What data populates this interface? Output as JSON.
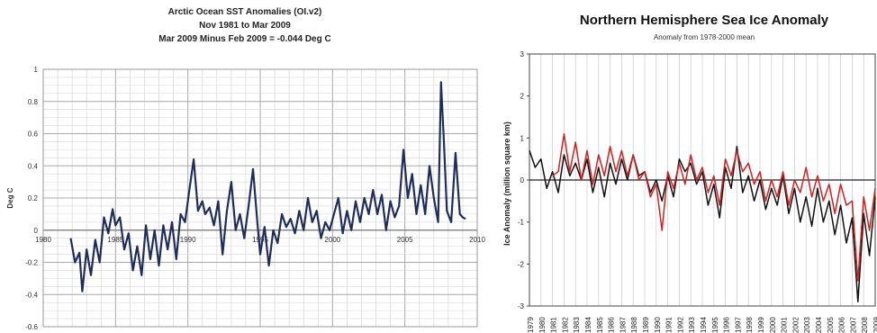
{
  "chart_data": [
    {
      "type": "line",
      "title": "Arctic Ocean SST Anomalies (OI.v2)",
      "subtitle_1": "Nov 1981 to Mar 2009",
      "subtitle_2": "Mar 2009 Minus Feb 2009 = -0.044 Deg C",
      "xlabel": "",
      "ylabel": "Deg C",
      "xlim": [
        1980,
        2010
      ],
      "ylim": [
        -0.6,
        1.0
      ],
      "x_ticks": [
        "1980",
        "1985",
        "1990",
        "1995",
        "2000",
        "2005",
        "2010"
      ],
      "y_ticks": [
        "-0.6",
        "-0.4",
        "-0.2",
        "0",
        "0.2",
        "0.4",
        "0.6",
        "0.8",
        "1"
      ],
      "grid": true,
      "color": "#1f2d5c",
      "series": [
        {
          "x": [
            1981.9,
            1982.2,
            1982.5,
            1982.7,
            1983.0,
            1983.3,
            1983.6,
            1983.9,
            1984.2,
            1984.5,
            1984.8,
            1985.0,
            1985.3,
            1985.6,
            1985.9,
            1986.2,
            1986.5,
            1986.8,
            1987.1,
            1987.4,
            1987.7,
            1988.0,
            1988.3,
            1988.6,
            1988.9,
            1989.2,
            1989.5,
            1989.8,
            1990.1,
            1990.4,
            1990.7,
            1991.0,
            1991.2,
            1991.5,
            1991.8,
            1992.1,
            1992.4,
            1992.7,
            1993.0,
            1993.3,
            1993.6,
            1993.9,
            1994.2,
            1994.5,
            1994.8,
            1995.0,
            1995.3,
            1995.6,
            1995.9,
            1996.2,
            1996.5,
            1996.8,
            1997.1,
            1997.4,
            1997.7,
            1998.0,
            1998.3,
            1998.6,
            1998.9,
            1999.2,
            1999.5,
            1999.8,
            2000.1,
            2000.4,
            2000.7,
            2001.0,
            2001.3,
            2001.6,
            2001.9,
            2002.2,
            2002.5,
            2002.8,
            2003.1,
            2003.4,
            2003.7,
            2004.0,
            2004.3,
            2004.6,
            2004.9,
            2005.2,
            2005.5,
            2005.8,
            2006.1,
            2006.4,
            2006.7,
            2007.0,
            2007.3,
            2007.5,
            2007.7,
            2007.9,
            2008.2,
            2008.5,
            2008.8,
            2009.0,
            2009.2
          ],
          "y": [
            -0.05,
            -0.2,
            -0.14,
            -0.38,
            -0.12,
            -0.28,
            -0.06,
            -0.2,
            0.08,
            -0.02,
            0.13,
            0.03,
            0.08,
            -0.12,
            -0.02,
            -0.25,
            -0.1,
            -0.28,
            0.03,
            -0.18,
            0.0,
            -0.22,
            0.03,
            -0.12,
            0.05,
            -0.18,
            0.1,
            0.05,
            0.25,
            0.44,
            0.12,
            0.18,
            0.1,
            0.14,
            0.03,
            0.18,
            -0.15,
            0.12,
            0.3,
            0.0,
            0.1,
            -0.05,
            0.15,
            0.38,
            0.05,
            -0.15,
            0.02,
            -0.22,
            0.0,
            -0.08,
            0.1,
            0.02,
            0.07,
            -0.02,
            0.12,
            0.0,
            0.2,
            0.05,
            0.12,
            -0.05,
            0.05,
            0.0,
            0.1,
            0.2,
            -0.02,
            0.12,
            0.0,
            0.18,
            0.05,
            0.2,
            0.1,
            0.25,
            0.1,
            0.22,
            0.0,
            0.18,
            0.08,
            0.15,
            0.5,
            0.2,
            0.35,
            0.1,
            0.28,
            0.1,
            0.4,
            0.2,
            0.05,
            0.92,
            0.55,
            0.12,
            0.05,
            0.48,
            0.1,
            0.08,
            0.07
          ]
        }
      ]
    },
    {
      "type": "line",
      "title": "Northern Hemisphere Sea Ice Anomaly",
      "subtitle": "Anomaly from 1978-2000 mean",
      "xlabel": "",
      "ylabel": "Ice Anomaly (million square km)",
      "xlim": [
        1979,
        2009
      ],
      "ylim": [
        -3,
        3
      ],
      "x_ticks": [
        "1979",
        "1980",
        "1981",
        "1982",
        "1983",
        "1984",
        "1985",
        "1986",
        "1987",
        "1988",
        "1989",
        "1990",
        "1991",
        "1992",
        "1993",
        "1994",
        "1995",
        "1996",
        "1997",
        "1998",
        "1999",
        "2000",
        "2001",
        "2002",
        "2003",
        "2004",
        "2005",
        "2006",
        "2007",
        "2008",
        "2009"
      ],
      "y_ticks": [
        "3",
        "2",
        "1",
        "0",
        "-1",
        "-2",
        "-3"
      ],
      "grid": true,
      "series": [
        {
          "color": "#111111",
          "x": [
            1979,
            1979.5,
            1980,
            1980.5,
            1981,
            1981.5,
            1982,
            1982.5,
            1983,
            1983.5,
            1984,
            1984.5,
            1985,
            1985.5,
            1986,
            1986.5,
            1987,
            1987.5,
            1988,
            1988.5,
            1989,
            1989.5,
            1990,
            1990.5,
            1991,
            1991.5,
            1992,
            1992.5,
            1993,
            1993.5,
            1994,
            1994.5,
            1995,
            1995.5,
            1996,
            1996.5,
            1997,
            1997.5,
            1998,
            1998.5,
            1999,
            1999.5,
            2000,
            2000.5,
            2001,
            2001.5,
            2002,
            2002.5,
            2003,
            2003.5,
            2004,
            2004.5,
            2005,
            2005.5,
            2006,
            2006.5,
            2007,
            2007.5,
            2008,
            2008.5,
            2009
          ],
          "y": [
            0.7,
            0.3,
            0.5,
            -0.2,
            0.2,
            -0.3,
            0.6,
            0.1,
            0.4,
            0.0,
            0.5,
            -0.3,
            0.3,
            -0.4,
            0.4,
            -0.1,
            0.5,
            0.0,
            0.6,
            0.1,
            0.2,
            -0.3,
            0.0,
            -0.5,
            0.1,
            -0.4,
            0.5,
            0.2,
            0.4,
            -0.1,
            0.2,
            -0.6,
            -0.1,
            -0.9,
            0.3,
            -0.2,
            0.8,
            -0.3,
            0.1,
            -0.5,
            0.0,
            -0.7,
            -0.2,
            -0.6,
            0.1,
            -0.8,
            -0.2,
            -1.0,
            -0.4,
            -1.1,
            -0.2,
            -1.0,
            -0.5,
            -1.3,
            -0.6,
            -1.5,
            -0.9,
            -2.9,
            -0.8,
            -1.8,
            -0.4
          ]
        },
        {
          "color": "#d32020",
          "x": [
            1981,
            1981.5,
            1982,
            1982.5,
            1983,
            1983.5,
            1984,
            1984.5,
            1985,
            1985.5,
            1986,
            1986.5,
            1987,
            1987.5,
            1988,
            1988.5,
            1989,
            1989.5,
            1990,
            1990.5,
            1991,
            1991.5,
            1992,
            1992.5,
            1993,
            1993.5,
            1994,
            1994.5,
            1995,
            1995.5,
            1996,
            1996.5,
            1997,
            1997.5,
            1998,
            1998.5,
            1999,
            1999.5,
            2000,
            2000.5,
            2001,
            2001.5,
            2002,
            2002.5,
            2003,
            2003.5,
            2004,
            2004.5,
            2005,
            2005.5,
            2006,
            2006.5,
            2007,
            2007.5,
            2008,
            2008.5,
            2009
          ],
          "y": [
            0.1,
            0.2,
            1.1,
            0.2,
            0.9,
            0.0,
            0.7,
            -0.1,
            0.6,
            0.1,
            0.8,
            0.2,
            0.7,
            0.1,
            0.6,
            0.0,
            0.2,
            -0.4,
            -0.1,
            -1.2,
            0.2,
            -0.2,
            0.4,
            -0.1,
            0.6,
            0.0,
            0.3,
            -0.3,
            0.1,
            -0.6,
            0.5,
            0.1,
            0.7,
            0.2,
            0.4,
            -0.1,
            0.2,
            -0.5,
            0.0,
            -0.4,
            0.2,
            -0.6,
            0.0,
            -0.3,
            0.3,
            -0.4,
            0.1,
            -0.5,
            -0.1,
            -0.8,
            -0.1,
            -0.6,
            -0.5,
            -2.4,
            -0.4,
            -1.2,
            -0.2
          ]
        }
      ]
    }
  ]
}
